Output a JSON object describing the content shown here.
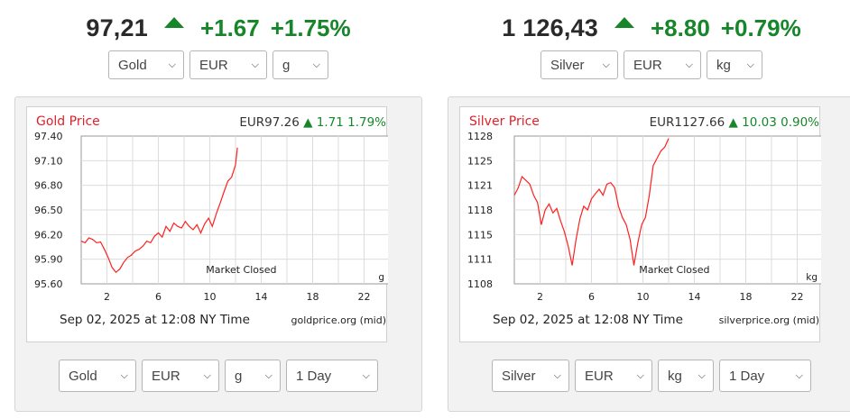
{
  "colors": {
    "up": "#17852a",
    "line": "#ff2020",
    "title": "#e0202a"
  },
  "widgets": [
    {
      "id": "gold",
      "price": "97,21",
      "change": "+1.67",
      "change_pct": "+1.75%",
      "top_selects": {
        "metal": "Gold",
        "currency": "EUR",
        "unit": "g"
      },
      "chart": {
        "title": "Gold Price",
        "quote": "EUR97.26",
        "quote_change": "1.71",
        "quote_change_pct": "1.79%",
        "y_ticks": [
          "97.40",
          "97.10",
          "96.80",
          "96.50",
          "96.20",
          "95.90",
          "95.60"
        ],
        "x_ticks": [
          "2",
          "6",
          "10",
          "14",
          "18",
          "22"
        ],
        "unit": "g",
        "status": "Market Closed",
        "footer_date": "Sep 02, 2025 at 12:08 NY Time",
        "footer_source": "goldprice.org (mid)"
      },
      "bottom_selects": {
        "metal": "Gold",
        "currency": "EUR",
        "unit": "g",
        "period": "1 Day"
      }
    },
    {
      "id": "silver",
      "price": "1 126,43",
      "change": "+8.80",
      "change_pct": "+0.79%",
      "top_selects": {
        "metal": "Silver",
        "currency": "EUR",
        "unit": "kg"
      },
      "chart": {
        "title": "Silver Price",
        "quote": "EUR1127.66",
        "quote_change": "10.03",
        "quote_change_pct": "0.90%",
        "y_ticks": [
          "1128",
          "1125",
          "1121",
          "1118",
          "1115",
          "1111",
          "1108"
        ],
        "x_ticks": [
          "2",
          "6",
          "10",
          "14",
          "18",
          "22"
        ],
        "unit": "kg",
        "status": "Market Closed",
        "footer_date": "Sep 02, 2025 at 12:08 NY Time",
        "footer_source": "silverprice.org (mid)"
      },
      "bottom_selects": {
        "metal": "Silver",
        "currency": "EUR",
        "unit": "kg",
        "period": "1 Day"
      }
    }
  ],
  "chart_data": [
    {
      "type": "line",
      "title": "Gold Price",
      "x_range": [
        0,
        24
      ],
      "ylim": [
        95.6,
        97.4
      ],
      "series": [
        {
          "x": [
            0,
            0.3,
            0.6,
            0.9,
            1.2,
            1.5,
            1.8,
            2.1,
            2.4,
            2.7,
            3.0,
            3.3,
            3.6,
            3.9,
            4.2,
            4.5,
            4.8,
            5.1,
            5.4,
            5.7,
            6.0,
            6.3,
            6.6,
            6.9,
            7.2,
            7.5,
            7.8,
            8.1,
            8.4,
            8.7,
            9.0,
            9.3,
            9.6,
            9.9,
            10.2,
            10.5,
            10.8,
            11.1,
            11.4,
            11.7,
            12.0,
            12.15
          ],
          "y": [
            96.12,
            96.1,
            96.16,
            96.14,
            96.1,
            96.11,
            96.02,
            95.92,
            95.8,
            95.74,
            95.78,
            95.86,
            95.92,
            95.95,
            96.0,
            96.02,
            96.06,
            96.12,
            96.1,
            96.18,
            96.22,
            96.17,
            96.3,
            96.24,
            96.34,
            96.3,
            96.28,
            96.36,
            96.3,
            96.26,
            96.32,
            96.22,
            96.33,
            96.4,
            96.3,
            96.45,
            96.58,
            96.72,
            96.85,
            96.9,
            97.05,
            97.26
          ]
        }
      ]
    },
    {
      "type": "line",
      "title": "Silver Price",
      "x_range": [
        0,
        24
      ],
      "ylim": [
        1108,
        1128
      ],
      "series": [
        {
          "x": [
            0,
            0.3,
            0.6,
            0.9,
            1.2,
            1.5,
            1.8,
            2.1,
            2.4,
            2.7,
            3.0,
            3.3,
            3.6,
            3.9,
            4.2,
            4.5,
            4.8,
            5.1,
            5.4,
            5.7,
            6.0,
            6.3,
            6.6,
            6.9,
            7.2,
            7.5,
            7.8,
            8.1,
            8.4,
            8.7,
            9.0,
            9.3,
            9.6,
            9.9,
            10.2,
            10.5,
            10.8,
            11.1,
            11.4,
            11.7,
            12.0
          ],
          "y": [
            1120,
            1121,
            1122.5,
            1122,
            1121.5,
            1120,
            1119,
            1116,
            1118,
            1118.8,
            1117.6,
            1118.2,
            1116.5,
            1115,
            1113,
            1110.5,
            1114,
            1116.8,
            1118.5,
            1118,
            1119.5,
            1120.2,
            1120.8,
            1120,
            1121.5,
            1121.7,
            1121,
            1118.5,
            1117,
            1116,
            1114,
            1110.5,
            1113.5,
            1116,
            1117,
            1120,
            1124,
            1125,
            1126,
            1126.5,
            1127.66
          ]
        }
      ]
    }
  ]
}
